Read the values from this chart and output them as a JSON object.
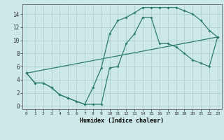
{
  "xlabel": "Humidex (Indice chaleur)",
  "bg_color": "#cce8e8",
  "grid_color": "#aacccc",
  "line_color": "#2e7d6e",
  "xlim": [
    -0.5,
    23.5
  ],
  "ylim": [
    -0.5,
    15.5
  ],
  "xticks": [
    0,
    1,
    2,
    3,
    4,
    5,
    6,
    7,
    8,
    9,
    10,
    11,
    12,
    13,
    14,
    15,
    16,
    17,
    18,
    19,
    20,
    21,
    22,
    23
  ],
  "yticks": [
    0,
    2,
    4,
    6,
    8,
    10,
    12,
    14
  ],
  "line1_x": [
    0,
    1,
    2,
    3,
    4,
    5,
    6,
    7,
    8,
    9,
    10,
    11,
    12,
    13,
    14,
    15,
    16,
    17,
    18,
    19,
    20,
    21,
    22,
    23
  ],
  "line1_y": [
    5,
    3.5,
    3.5,
    2.8,
    1.7,
    1.2,
    0.7,
    0.25,
    0.25,
    0.25,
    5.8,
    6.0,
    9.5,
    11.0,
    13.5,
    13.5,
    9.5,
    9.5,
    9.0,
    8.0,
    7.0,
    6.5,
    6.0,
    10.5
  ],
  "line2_x": [
    0,
    1,
    2,
    3,
    4,
    5,
    6,
    7,
    8,
    9,
    10,
    11,
    12,
    13,
    14,
    15,
    16,
    17,
    18,
    19,
    20,
    21,
    22,
    23
  ],
  "line2_y": [
    5,
    3.5,
    3.5,
    2.8,
    1.7,
    1.2,
    0.7,
    0.25,
    2.8,
    5.8,
    11.0,
    13.0,
    13.5,
    14.2,
    15.0,
    15.0,
    15.0,
    15.0,
    15.0,
    14.5,
    14.0,
    13.0,
    11.5,
    10.5
  ],
  "line3_x": [
    0,
    23
  ],
  "line3_y": [
    5,
    10.5
  ]
}
